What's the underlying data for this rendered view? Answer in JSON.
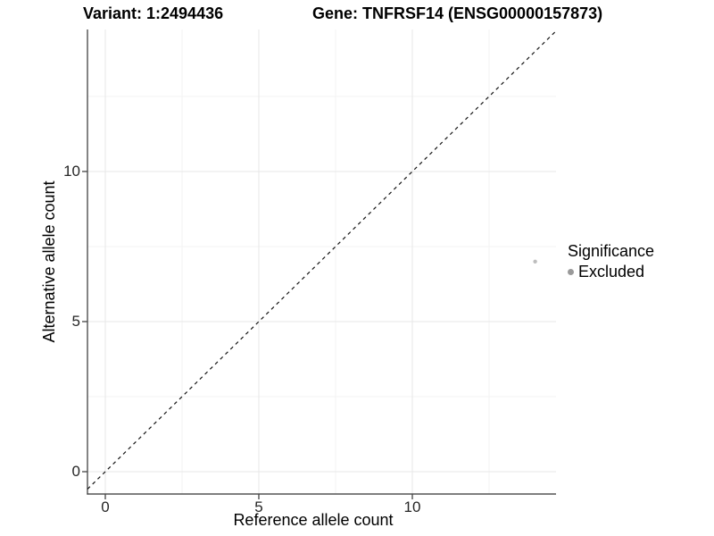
{
  "chart_data": {
    "type": "scatter",
    "title_left": "Variant: 1:2494436",
    "title_right": "Gene: TNFRSF14 (ENSG00000157873)",
    "xlabel": "Reference allele count",
    "ylabel": "Alternative allele count",
    "xlim": [
      -0.581,
      14.68
    ],
    "ylim": [
      -0.744,
      14.73
    ],
    "x_ticks": [
      0,
      5,
      10
    ],
    "y_ticks": [
      0,
      5,
      10
    ],
    "x_minor_ticks": [
      2.5,
      7.5,
      12.5
    ],
    "y_minor_ticks": [
      2.5,
      7.5,
      12.5
    ],
    "grid": "major-and-minor",
    "identity_line": {
      "equation": "y = x",
      "style": "dashed",
      "color": "#141414"
    },
    "series": [
      {
        "name": "Excluded",
        "color": "#bdbdbd",
        "points": [
          {
            "x": 14,
            "y": 7
          }
        ]
      }
    ],
    "legend": {
      "title": "Significance",
      "position": "right",
      "entries": [
        {
          "label": "Excluded",
          "color": "#9a9a9a"
        }
      ]
    },
    "colors": {
      "axis": "#333333",
      "tick": "#333333",
      "grid_major": "#e7e7e7",
      "grid_minor": "#f3f3f3",
      "tick_label": "#262626",
      "text": "#000000"
    }
  }
}
